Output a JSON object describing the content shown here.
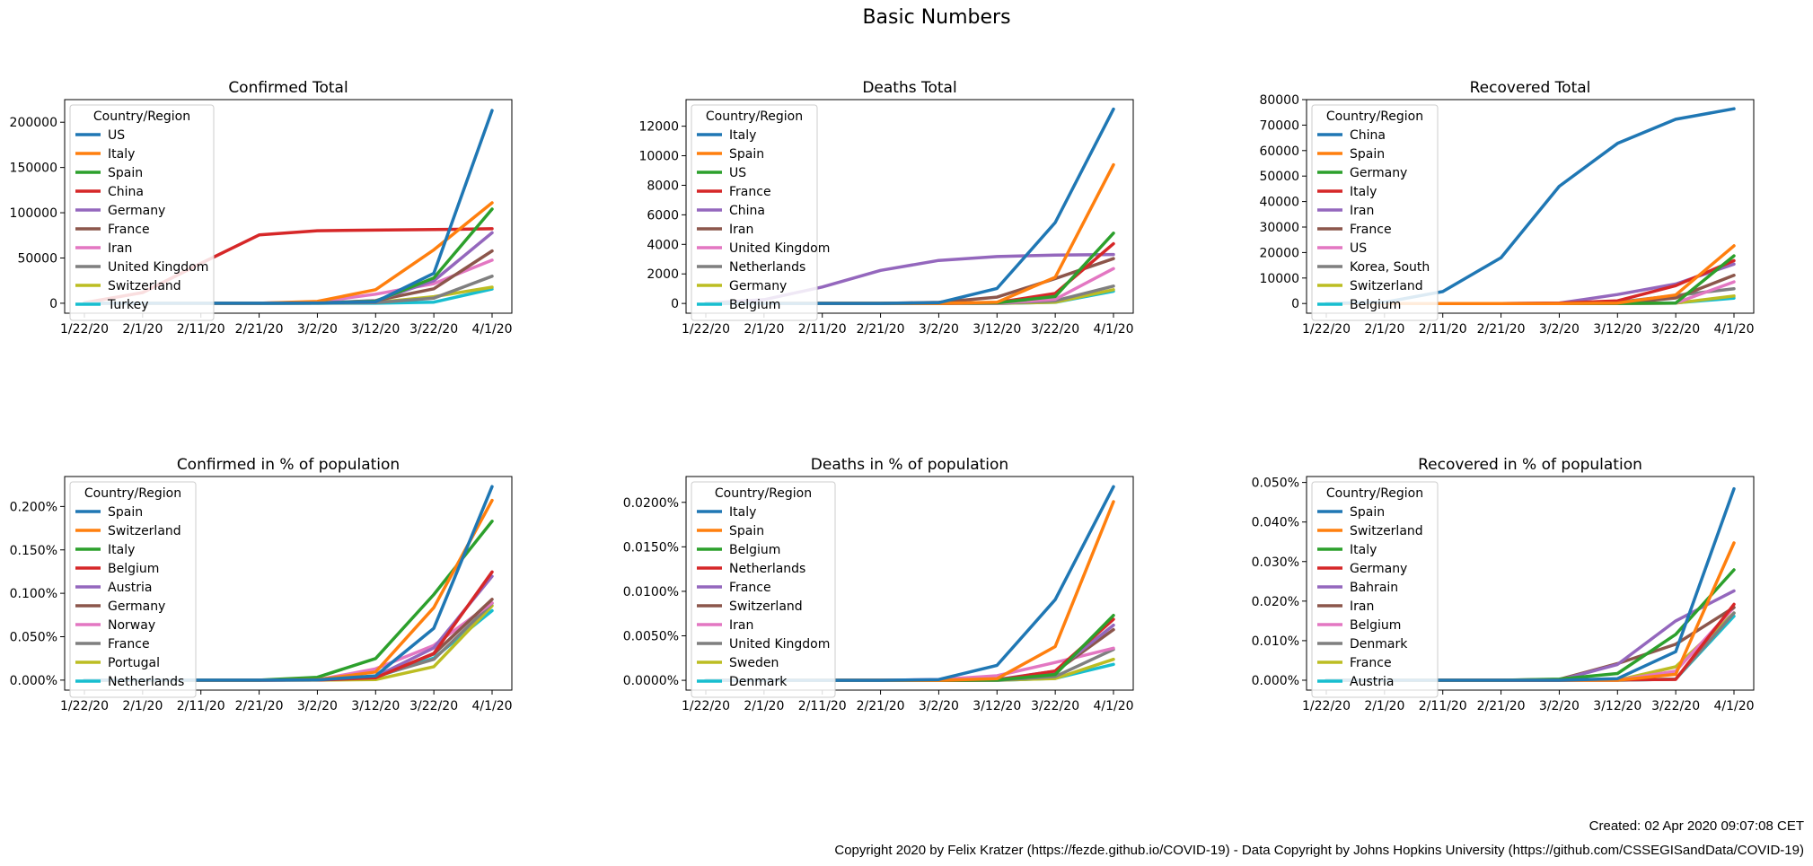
{
  "figure": {
    "title": "Basic Numbers",
    "created": "Created: 02 Apr 2020 09:07:08 CET",
    "copyright": "Copyright 2020 by Felix Kratzer (https://fezde.github.io/COVID-19) - Data Copyright by Johns Hopkins University (https://github.com/CSSEGISandData/COVID-19)"
  },
  "palette": [
    "#1f77b4",
    "#ff7f0e",
    "#2ca02c",
    "#d62728",
    "#9467bd",
    "#8c564b",
    "#e377c2",
    "#7f7f7f",
    "#bcbd22",
    "#17becf"
  ],
  "chart_data": [
    {
      "type": "line",
      "title": "Confirmed Total",
      "legend_title": "Country/Region",
      "legend_position": "top-left",
      "x": [
        "1/22/20",
        "2/1/20",
        "2/11/20",
        "2/21/20",
        "3/2/20",
        "3/12/20",
        "3/22/20",
        "4/1/20"
      ],
      "xticks": [
        "1/22/20",
        "2/1/20",
        "2/11/20",
        "2/21/20",
        "3/2/20",
        "3/12/20",
        "3/22/20",
        "4/1/20"
      ],
      "yticks": [
        "0",
        "50000",
        "100000",
        "150000",
        "200000"
      ],
      "ylim": [
        -11000,
        225000
      ],
      "series": [
        {
          "name": "US",
          "values": [
            1,
            8,
            13,
            15,
            100,
            1600,
            33000,
            213000
          ]
        },
        {
          "name": "Italy",
          "values": [
            0,
            2,
            3,
            3,
            2000,
            15000,
            59000,
            111000
          ]
        },
        {
          "name": "Spain",
          "values": [
            0,
            1,
            2,
            2,
            120,
            2300,
            28000,
            104000
          ]
        },
        {
          "name": "China",
          "values": [
            550,
            11800,
            44000,
            75500,
            80100,
            80800,
            81400,
            82300
          ]
        },
        {
          "name": "Germany",
          "values": [
            0,
            8,
            16,
            16,
            160,
            2700,
            24800,
            77800
          ]
        },
        {
          "name": "France",
          "values": [
            0,
            6,
            11,
            12,
            190,
            2900,
            16000,
            57800
          ]
        },
        {
          "name": "Iran",
          "values": [
            0,
            0,
            0,
            5,
            1500,
            10000,
            21600,
            47600
          ]
        },
        {
          "name": "United Kingdom",
          "values": [
            0,
            2,
            8,
            9,
            40,
            590,
            5700,
            29900
          ]
        },
        {
          "name": "Switzerland",
          "values": [
            0,
            0,
            0,
            0,
            42,
            800,
            7200,
            17800
          ]
        },
        {
          "name": "Turkey",
          "values": [
            0,
            0,
            0,
            0,
            0,
            1,
            1240,
            15700
          ]
        }
      ]
    },
    {
      "type": "line",
      "title": "Deaths Total",
      "legend_title": "Country/Region",
      "legend_position": "top-left",
      "x": [
        "1/22/20",
        "2/1/20",
        "2/11/20",
        "2/21/20",
        "3/2/20",
        "3/12/20",
        "3/22/20",
        "4/1/20"
      ],
      "xticks": [
        "1/22/20",
        "2/1/20",
        "2/11/20",
        "2/21/20",
        "3/2/20",
        "3/12/20",
        "3/22/20",
        "4/1/20"
      ],
      "yticks": [
        "0",
        "2000",
        "4000",
        "6000",
        "8000",
        "10000",
        "12000"
      ],
      "ylim": [
        -660,
        13800
      ],
      "series": [
        {
          "name": "Italy",
          "values": [
            0,
            0,
            0,
            1,
            52,
            1016,
            5476,
            13155
          ]
        },
        {
          "name": "Spain",
          "values": [
            0,
            0,
            0,
            0,
            0,
            84,
            1772,
            9387
          ]
        },
        {
          "name": "US",
          "values": [
            0,
            0,
            0,
            0,
            6,
            40,
            471,
            4757
          ]
        },
        {
          "name": "France",
          "values": [
            0,
            0,
            1,
            1,
            3,
            61,
            674,
            4043
          ]
        },
        {
          "name": "China",
          "values": [
            17,
            259,
            1113,
            2239,
            2912,
            3173,
            3274,
            3316
          ]
        },
        {
          "name": "Iran",
          "values": [
            0,
            0,
            0,
            4,
            77,
            429,
            1685,
            3036
          ]
        },
        {
          "name": "United Kingdom",
          "values": [
            0,
            0,
            0,
            0,
            0,
            8,
            282,
            2357
          ]
        },
        {
          "name": "Netherlands",
          "values": [
            0,
            0,
            0,
            0,
            0,
            5,
            180,
            1175
          ]
        },
        {
          "name": "Germany",
          "values": [
            0,
            0,
            0,
            0,
            0,
            3,
            84,
            931
          ]
        },
        {
          "name": "Belgium",
          "values": [
            0,
            0,
            0,
            0,
            0,
            3,
            75,
            828
          ]
        }
      ]
    },
    {
      "type": "line",
      "title": "Recovered Total",
      "legend_title": "Country/Region",
      "legend_position": "top-left",
      "x": [
        "1/22/20",
        "2/1/20",
        "2/11/20",
        "2/21/20",
        "3/2/20",
        "3/12/20",
        "3/22/20",
        "4/1/20"
      ],
      "xticks": [
        "1/22/20",
        "2/1/20",
        "2/11/20",
        "2/21/20",
        "3/2/20",
        "3/12/20",
        "3/22/20",
        "4/1/20"
      ],
      "yticks": [
        "0",
        "10000",
        "20000",
        "30000",
        "40000",
        "50000",
        "60000",
        "70000",
        "80000"
      ],
      "ylim": [
        -3800,
        80000
      ],
      "series": [
        {
          "name": "China",
          "values": [
            28,
            510,
            4700,
            18000,
            46000,
            62800,
            72300,
            76400
          ]
        },
        {
          "name": "Spain",
          "values": [
            0,
            0,
            0,
            2,
            2,
            183,
            3355,
            22647
          ]
        },
        {
          "name": "Germany",
          "values": [
            0,
            0,
            0,
            14,
            16,
            46,
            180,
            18700
          ]
        },
        {
          "name": "Italy",
          "values": [
            0,
            0,
            0,
            1,
            160,
            1045,
            7024,
            16847
          ]
        },
        {
          "name": "Iran",
          "values": [
            0,
            0,
            0,
            0,
            175,
            3529,
            7635,
            15473
          ]
        },
        {
          "name": "France",
          "values": [
            0,
            0,
            2,
            4,
            12,
            12,
            2200,
            11053
          ]
        },
        {
          "name": "US",
          "values": [
            0,
            0,
            3,
            5,
            7,
            12,
            178,
            8474
          ]
        },
        {
          "name": "Korea, South",
          "values": [
            0,
            0,
            3,
            16,
            30,
            510,
            3166,
            5828
          ]
        },
        {
          "name": "Switzerland",
          "values": [
            0,
            0,
            0,
            0,
            0,
            4,
            131,
            2967
          ]
        },
        {
          "name": "Belgium",
          "values": [
            0,
            0,
            0,
            1,
            1,
            1,
            263,
            2132
          ]
        }
      ]
    },
    {
      "type": "line",
      "title": "Confirmed in % of population",
      "legend_title": "Country/Region",
      "legend_position": "top-left",
      "x": [
        "1/22/20",
        "2/1/20",
        "2/11/20",
        "2/21/20",
        "3/2/20",
        "3/12/20",
        "3/22/20",
        "4/1/20"
      ],
      "xticks": [
        "1/22/20",
        "2/1/20",
        "2/11/20",
        "2/21/20",
        "3/2/20",
        "3/12/20",
        "3/22/20",
        "4/1/20"
      ],
      "yticks": [
        "0.000%",
        "0.050%",
        "0.100%",
        "0.150%",
        "0.200%"
      ],
      "ylim": [
        -0.0115,
        0.2345
      ],
      "series": [
        {
          "name": "Spain",
          "values": [
            0,
            0,
            0,
            0,
            0.0003,
            0.0049,
            0.0597,
            0.2229
          ]
        },
        {
          "name": "Switzerland",
          "values": [
            0,
            0,
            0,
            0,
            0.0005,
            0.0094,
            0.0835,
            0.207
          ]
        },
        {
          "name": "Italy",
          "values": [
            0,
            0,
            0,
            0,
            0.0033,
            0.0249,
            0.0986,
            0.183
          ]
        },
        {
          "name": "Belgium",
          "values": [
            0,
            0,
            0,
            0,
            0.0001,
            0.0027,
            0.0308,
            0.1246
          ]
        },
        {
          "name": "Austria",
          "values": [
            0,
            0,
            0,
            0,
            0.0001,
            0.004,
            0.0372,
            0.1196
          ]
        },
        {
          "name": "Germany",
          "values": [
            0,
            0,
            0,
            0,
            0.0002,
            0.0033,
            0.03,
            0.0931
          ]
        },
        {
          "name": "Norway",
          "values": [
            0,
            0,
            0,
            0,
            0.0003,
            0.013,
            0.04,
            0.089
          ]
        },
        {
          "name": "France",
          "values": [
            0,
            0,
            0,
            0,
            0.0003,
            0.0043,
            0.024,
            0.0886
          ]
        },
        {
          "name": "Portugal",
          "values": [
            0,
            0,
            0,
            0,
            0,
            0.0006,
            0.0155,
            0.0857
          ]
        },
        {
          "name": "Netherlands",
          "values": [
            0,
            0,
            0,
            0,
            0.0001,
            0.0036,
            0.0254,
            0.08
          ]
        }
      ]
    },
    {
      "type": "line",
      "title": "Deaths in % of population",
      "legend_title": "Country/Region",
      "legend_position": "top-left",
      "x": [
        "1/22/20",
        "2/1/20",
        "2/11/20",
        "2/21/20",
        "3/2/20",
        "3/12/20",
        "3/22/20",
        "4/1/20"
      ],
      "xticks": [
        "1/22/20",
        "2/1/20",
        "2/11/20",
        "2/21/20",
        "3/2/20",
        "3/12/20",
        "3/22/20",
        "4/1/20"
      ],
      "yticks": [
        "0.0000%",
        "0.0050%",
        "0.0100%",
        "0.0150%",
        "0.0200%"
      ],
      "ylim": [
        -0.0011,
        0.0229
      ],
      "series": [
        {
          "name": "Italy",
          "values": [
            0,
            0,
            0,
            0,
            9e-05,
            0.00168,
            0.00906,
            0.02176
          ]
        },
        {
          "name": "Spain",
          "values": [
            0,
            0,
            0,
            0,
            0,
            0.00018,
            0.00379,
            0.02008
          ]
        },
        {
          "name": "Belgium",
          "values": [
            0,
            0,
            0,
            0,
            0,
            3e-05,
            0.00065,
            0.0073
          ]
        },
        {
          "name": "Netherlands",
          "values": [
            0,
            0,
            0,
            0,
            0,
            3e-05,
            0.00105,
            0.00686
          ]
        },
        {
          "name": "France",
          "values": [
            0,
            0,
            0,
            0,
            1e-05,
            9e-05,
            0.00103,
            0.0062
          ]
        },
        {
          "name": "Switzerland",
          "values": [
            0,
            0,
            0,
            0,
            0,
            5e-05,
            0.00097,
            0.0057
          ]
        },
        {
          "name": "Iran",
          "values": [
            0,
            0,
            0,
            0,
            9e-05,
            0.00051,
            0.00201,
            0.00361
          ]
        },
        {
          "name": "United Kingdom",
          "values": [
            0,
            0,
            0,
            0,
            0,
            1e-05,
            0.00042,
            0.00347
          ]
        },
        {
          "name": "Sweden",
          "values": [
            0,
            0,
            0,
            0,
            0,
            1e-05,
            0.0002,
            0.00236
          ]
        },
        {
          "name": "Denmark",
          "values": [
            0,
            0,
            0,
            0,
            0,
            0,
            0.00022,
            0.00179
          ]
        }
      ]
    },
    {
      "type": "line",
      "title": "Recovered in % of population",
      "legend_title": "Country/Region",
      "legend_position": "top-left",
      "x": [
        "1/22/20",
        "2/1/20",
        "2/11/20",
        "2/21/20",
        "3/2/20",
        "3/12/20",
        "3/22/20",
        "4/1/20"
      ],
      "xticks": [
        "1/22/20",
        "2/1/20",
        "2/11/20",
        "2/21/20",
        "3/2/20",
        "3/12/20",
        "3/22/20",
        "4/1/20"
      ],
      "yticks": [
        "0.000%",
        "0.010%",
        "0.020%",
        "0.030%",
        "0.040%",
        "0.050%"
      ],
      "ylim": [
        -0.0025,
        0.0515
      ],
      "series": [
        {
          "name": "Spain",
          "values": [
            0,
            0,
            0,
            0,
            0,
            0.0004,
            0.0072,
            0.0484
          ]
        },
        {
          "name": "Switzerland",
          "values": [
            0,
            0,
            0,
            0,
            0,
            0,
            0.0015,
            0.0347
          ]
        },
        {
          "name": "Italy",
          "values": [
            0,
            0,
            0,
            0,
            0.0003,
            0.0017,
            0.0116,
            0.0279
          ]
        },
        {
          "name": "Germany",
          "values": [
            0,
            0,
            0,
            0,
            0,
            0.0001,
            0.0002,
            0.0192
          ]
        },
        {
          "name": "Bahrain",
          "values": [
            0,
            0,
            0,
            0,
            0,
            0.004,
            0.015,
            0.0226
          ]
        },
        {
          "name": "Iran",
          "values": [
            0,
            0,
            0,
            0,
            0.0002,
            0.0042,
            0.0091,
            0.0184
          ]
        },
        {
          "name": "Belgium",
          "values": [
            0,
            0,
            0,
            0,
            0,
            0,
            0.0023,
            0.0184
          ]
        },
        {
          "name": "Denmark",
          "values": [
            0,
            0,
            0,
            0,
            0,
            0,
            0.0003,
            0.017
          ]
        },
        {
          "name": "France",
          "values": [
            0,
            0,
            0,
            0,
            0,
            0,
            0.0034,
            0.017
          ]
        },
        {
          "name": "Austria",
          "values": [
            0,
            0,
            0,
            0,
            0,
            0,
            0.0003,
            0.0162
          ]
        }
      ]
    }
  ]
}
